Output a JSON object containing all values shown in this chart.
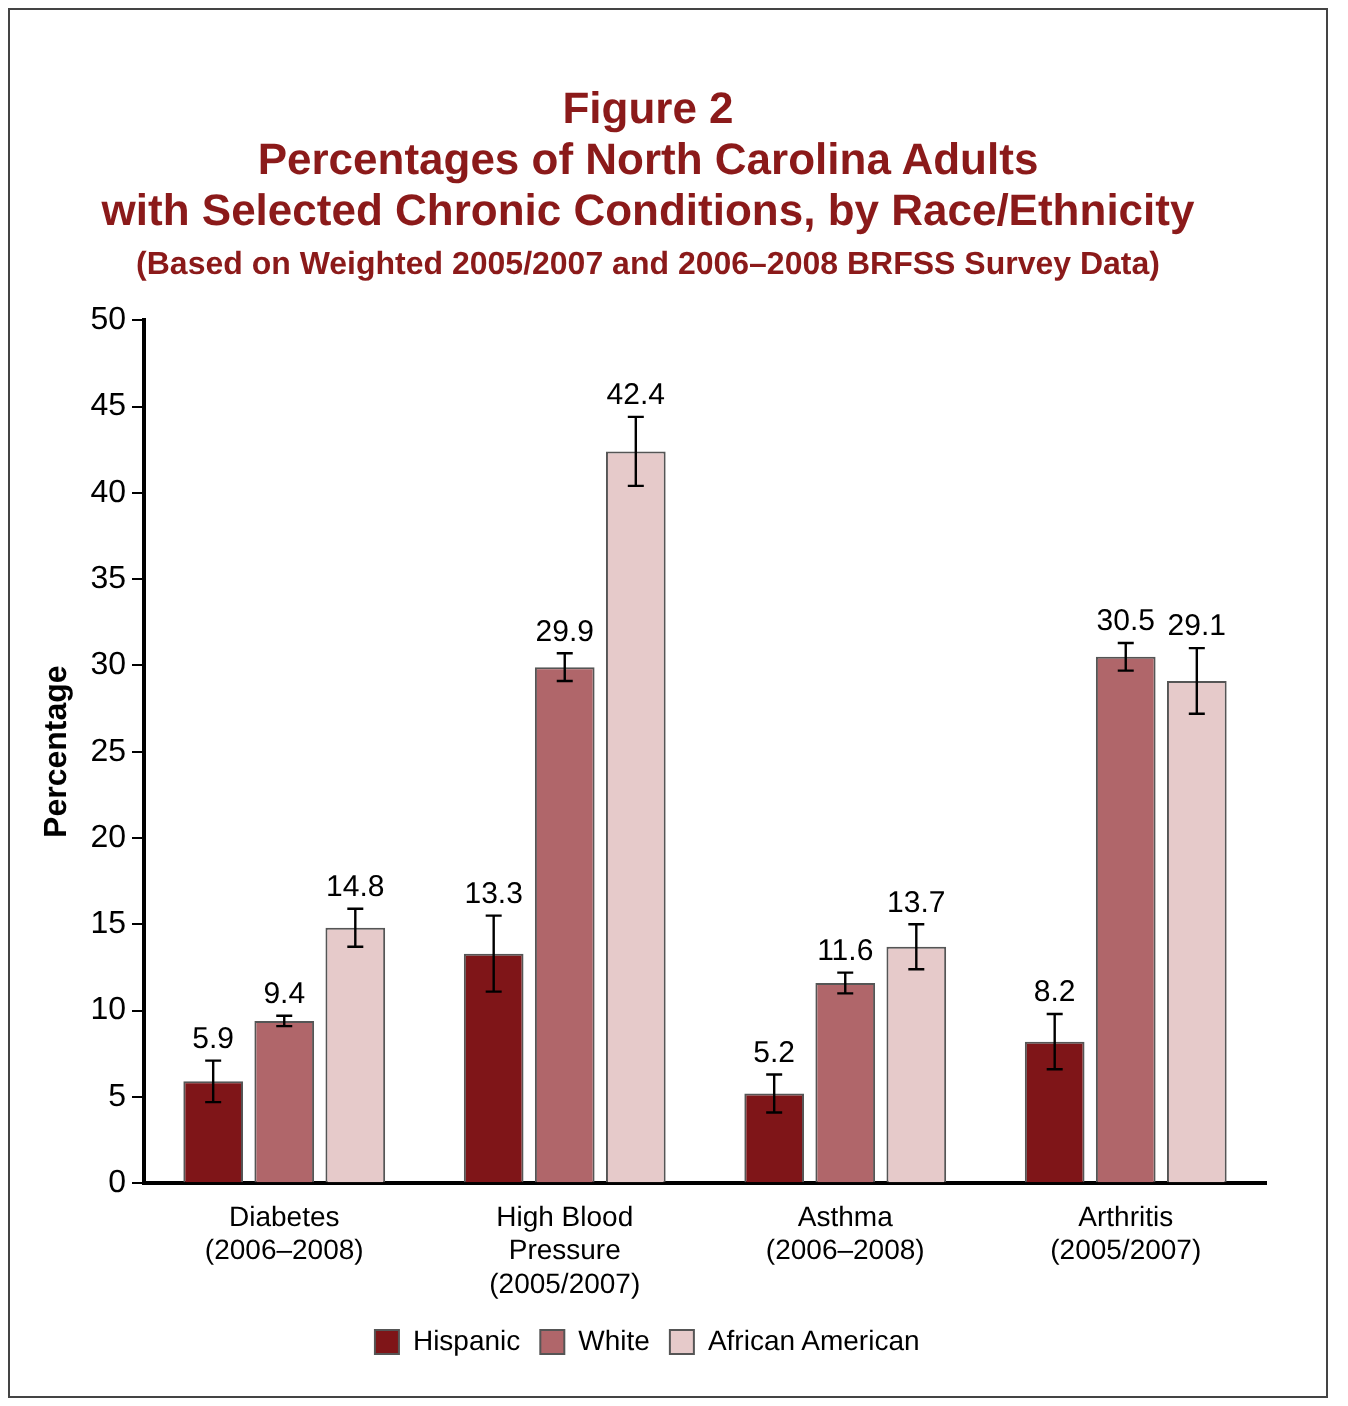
{
  "chart_data": {
    "type": "bar",
    "title": "Figure 2\nPercentages of North Carolina Adults\nwith Selected Chronic Conditions, by Race/Ethnicity",
    "subtitle": "(Based on Weighted 2005/2007 and 2006–2008 BRFSS Survey Data)",
    "ylabel": "Percentage",
    "categories": [
      "Diabetes\n(2006–2008)",
      "High Blood\nPressure\n(2005/2007)",
      "Asthma\n(2006–2008)",
      "Arthritis\n(2005/2007)"
    ],
    "series": [
      {
        "name": "Hispanic",
        "color": "#7f1518",
        "values": [
          5.9,
          13.3,
          5.2,
          8.2
        ],
        "errors": [
          1.2,
          2.2,
          1.1,
          1.6
        ]
      },
      {
        "name": "White",
        "color": "#b0666a",
        "values": [
          9.4,
          29.9,
          11.6,
          30.5
        ],
        "errors": [
          0.3,
          0.8,
          0.6,
          0.8
        ]
      },
      {
        "name": "African American",
        "color": "#e6caca",
        "values": [
          14.8,
          42.4,
          13.7,
          29.1
        ],
        "errors": [
          1.1,
          2.0,
          1.3,
          1.9
        ]
      }
    ],
    "ylim": [
      0,
      50
    ],
    "yticks": [
      0,
      5,
      10,
      15,
      20,
      25,
      30,
      35,
      40,
      45,
      50
    ],
    "grid": false,
    "legend": "bottom",
    "data_labels": true
  }
}
